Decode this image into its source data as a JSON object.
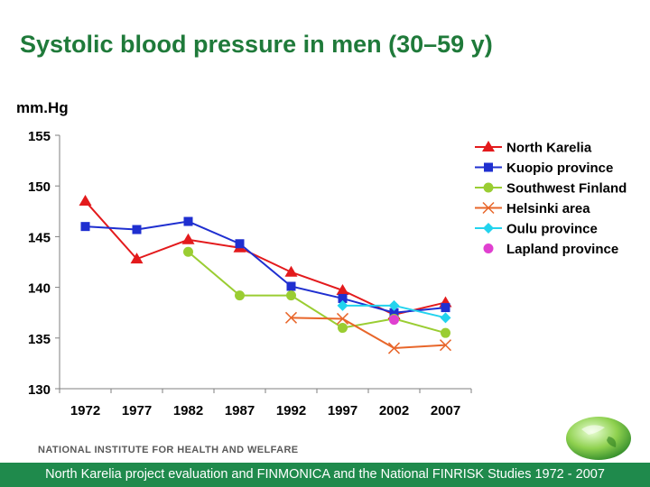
{
  "header": {
    "title": "Systolic blood pressure in men (30–59 y)",
    "unit": "mm.Hg"
  },
  "chart_data": {
    "type": "line",
    "ylim": [
      130,
      155
    ],
    "yticks": [
      130,
      135,
      140,
      145,
      150,
      155
    ],
    "categories": [
      "1972",
      "1977",
      "1982",
      "1987",
      "1992",
      "1997",
      "2002",
      "2007"
    ],
    "grid": false,
    "legend": "right",
    "series": [
      {
        "name": "North Karelia",
        "color": "#e31a1c",
        "marker": "triangle",
        "values": [
          148.5,
          142.8,
          144.7,
          143.9,
          141.5,
          139.7,
          137.3,
          138.5
        ]
      },
      {
        "name": "Kuopio province",
        "color": "#1f2fd0",
        "marker": "square",
        "values": [
          146.0,
          145.7,
          146.5,
          144.3,
          140.1,
          138.9,
          137.5,
          138.0
        ]
      },
      {
        "name": "Southwest Finland",
        "color": "#9acd32",
        "marker": "circle",
        "values": [
          null,
          null,
          143.5,
          139.2,
          139.2,
          136.0,
          136.9,
          135.5
        ]
      },
      {
        "name": "Helsinki area",
        "color": "#e8662a",
        "marker": "x",
        "values": [
          null,
          null,
          null,
          null,
          137.0,
          136.9,
          134.0,
          134.3
        ]
      },
      {
        "name": "Oulu province",
        "color": "#22d3ee",
        "marker": "diamond",
        "values": [
          null,
          null,
          null,
          null,
          null,
          138.2,
          138.2,
          137.0
        ]
      },
      {
        "name": "Lapland province",
        "color": "#e040d0",
        "marker": "circle",
        "values": [
          null,
          null,
          null,
          null,
          null,
          null,
          136.8,
          null
        ]
      }
    ]
  },
  "footer": {
    "org": "NATIONAL INSTITUTE FOR HEALTH AND WELFARE",
    "source": "North Karelia project evaluation and FINMONICA and the National FINRISK Studies 1972 - 2007"
  }
}
